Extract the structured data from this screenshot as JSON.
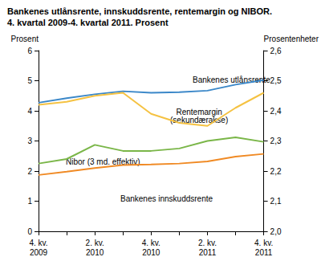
{
  "chart_data": {
    "type": "line",
    "title": "Bankenes utlånsrente, innskuddsrente, rentemargin og NIBOR.\n4. kvartal 2009-4. kvartal 2011. Prosent",
    "y_label": "Prosent",
    "y2_label": "Prosentenheter",
    "categories": [
      "4. kv.\n2009",
      null,
      "2. kv.\n2010",
      null,
      "4. kv.\n2010",
      null,
      "2. kv.\n2011",
      null,
      "4. kv.\n2011"
    ],
    "ylim": [
      0,
      6
    ],
    "yticks": [
      0,
      1,
      2,
      3,
      4,
      5,
      6
    ],
    "y2lim": [
      2.0,
      2.6
    ],
    "y2ticks": [
      {
        "value": 2.0,
        "label": "2,0"
      },
      {
        "value": 2.1,
        "label": "2,1"
      },
      {
        "value": 2.2,
        "label": "2,2"
      },
      {
        "value": 2.3,
        "label": "2,3"
      },
      {
        "value": 2.4,
        "label": "2,4"
      },
      {
        "value": 2.5,
        "label": "2,5"
      },
      {
        "value": 2.6,
        "label": "2,6"
      }
    ],
    "grid": false,
    "series": [
      {
        "name": "Bankenes utlånsrente",
        "color": "#3a87c8",
        "values": [
          4.27,
          4.42,
          4.55,
          4.65,
          4.6,
          4.62,
          4.67,
          4.87,
          5.02
        ]
      },
      {
        "name": "Rentemargin\n(sekundærakse)",
        "color": "#f5c242",
        "axis": "y2",
        "values": [
          2.42,
          2.43,
          2.45,
          2.46,
          2.39,
          2.36,
          2.35,
          2.41,
          2.46
        ]
      },
      {
        "name": "Nibor (3 md. effektiv)",
        "color": "#7ab648",
        "values": [
          2.25,
          2.4,
          2.87,
          2.67,
          2.67,
          2.75,
          3.0,
          3.12,
          2.97
        ]
      },
      {
        "name": "Bankenes innskuddsrente",
        "color": "#f08a24",
        "values": [
          1.87,
          1.98,
          2.1,
          2.2,
          2.22,
          2.25,
          2.32,
          2.48,
          2.57
        ]
      }
    ]
  }
}
